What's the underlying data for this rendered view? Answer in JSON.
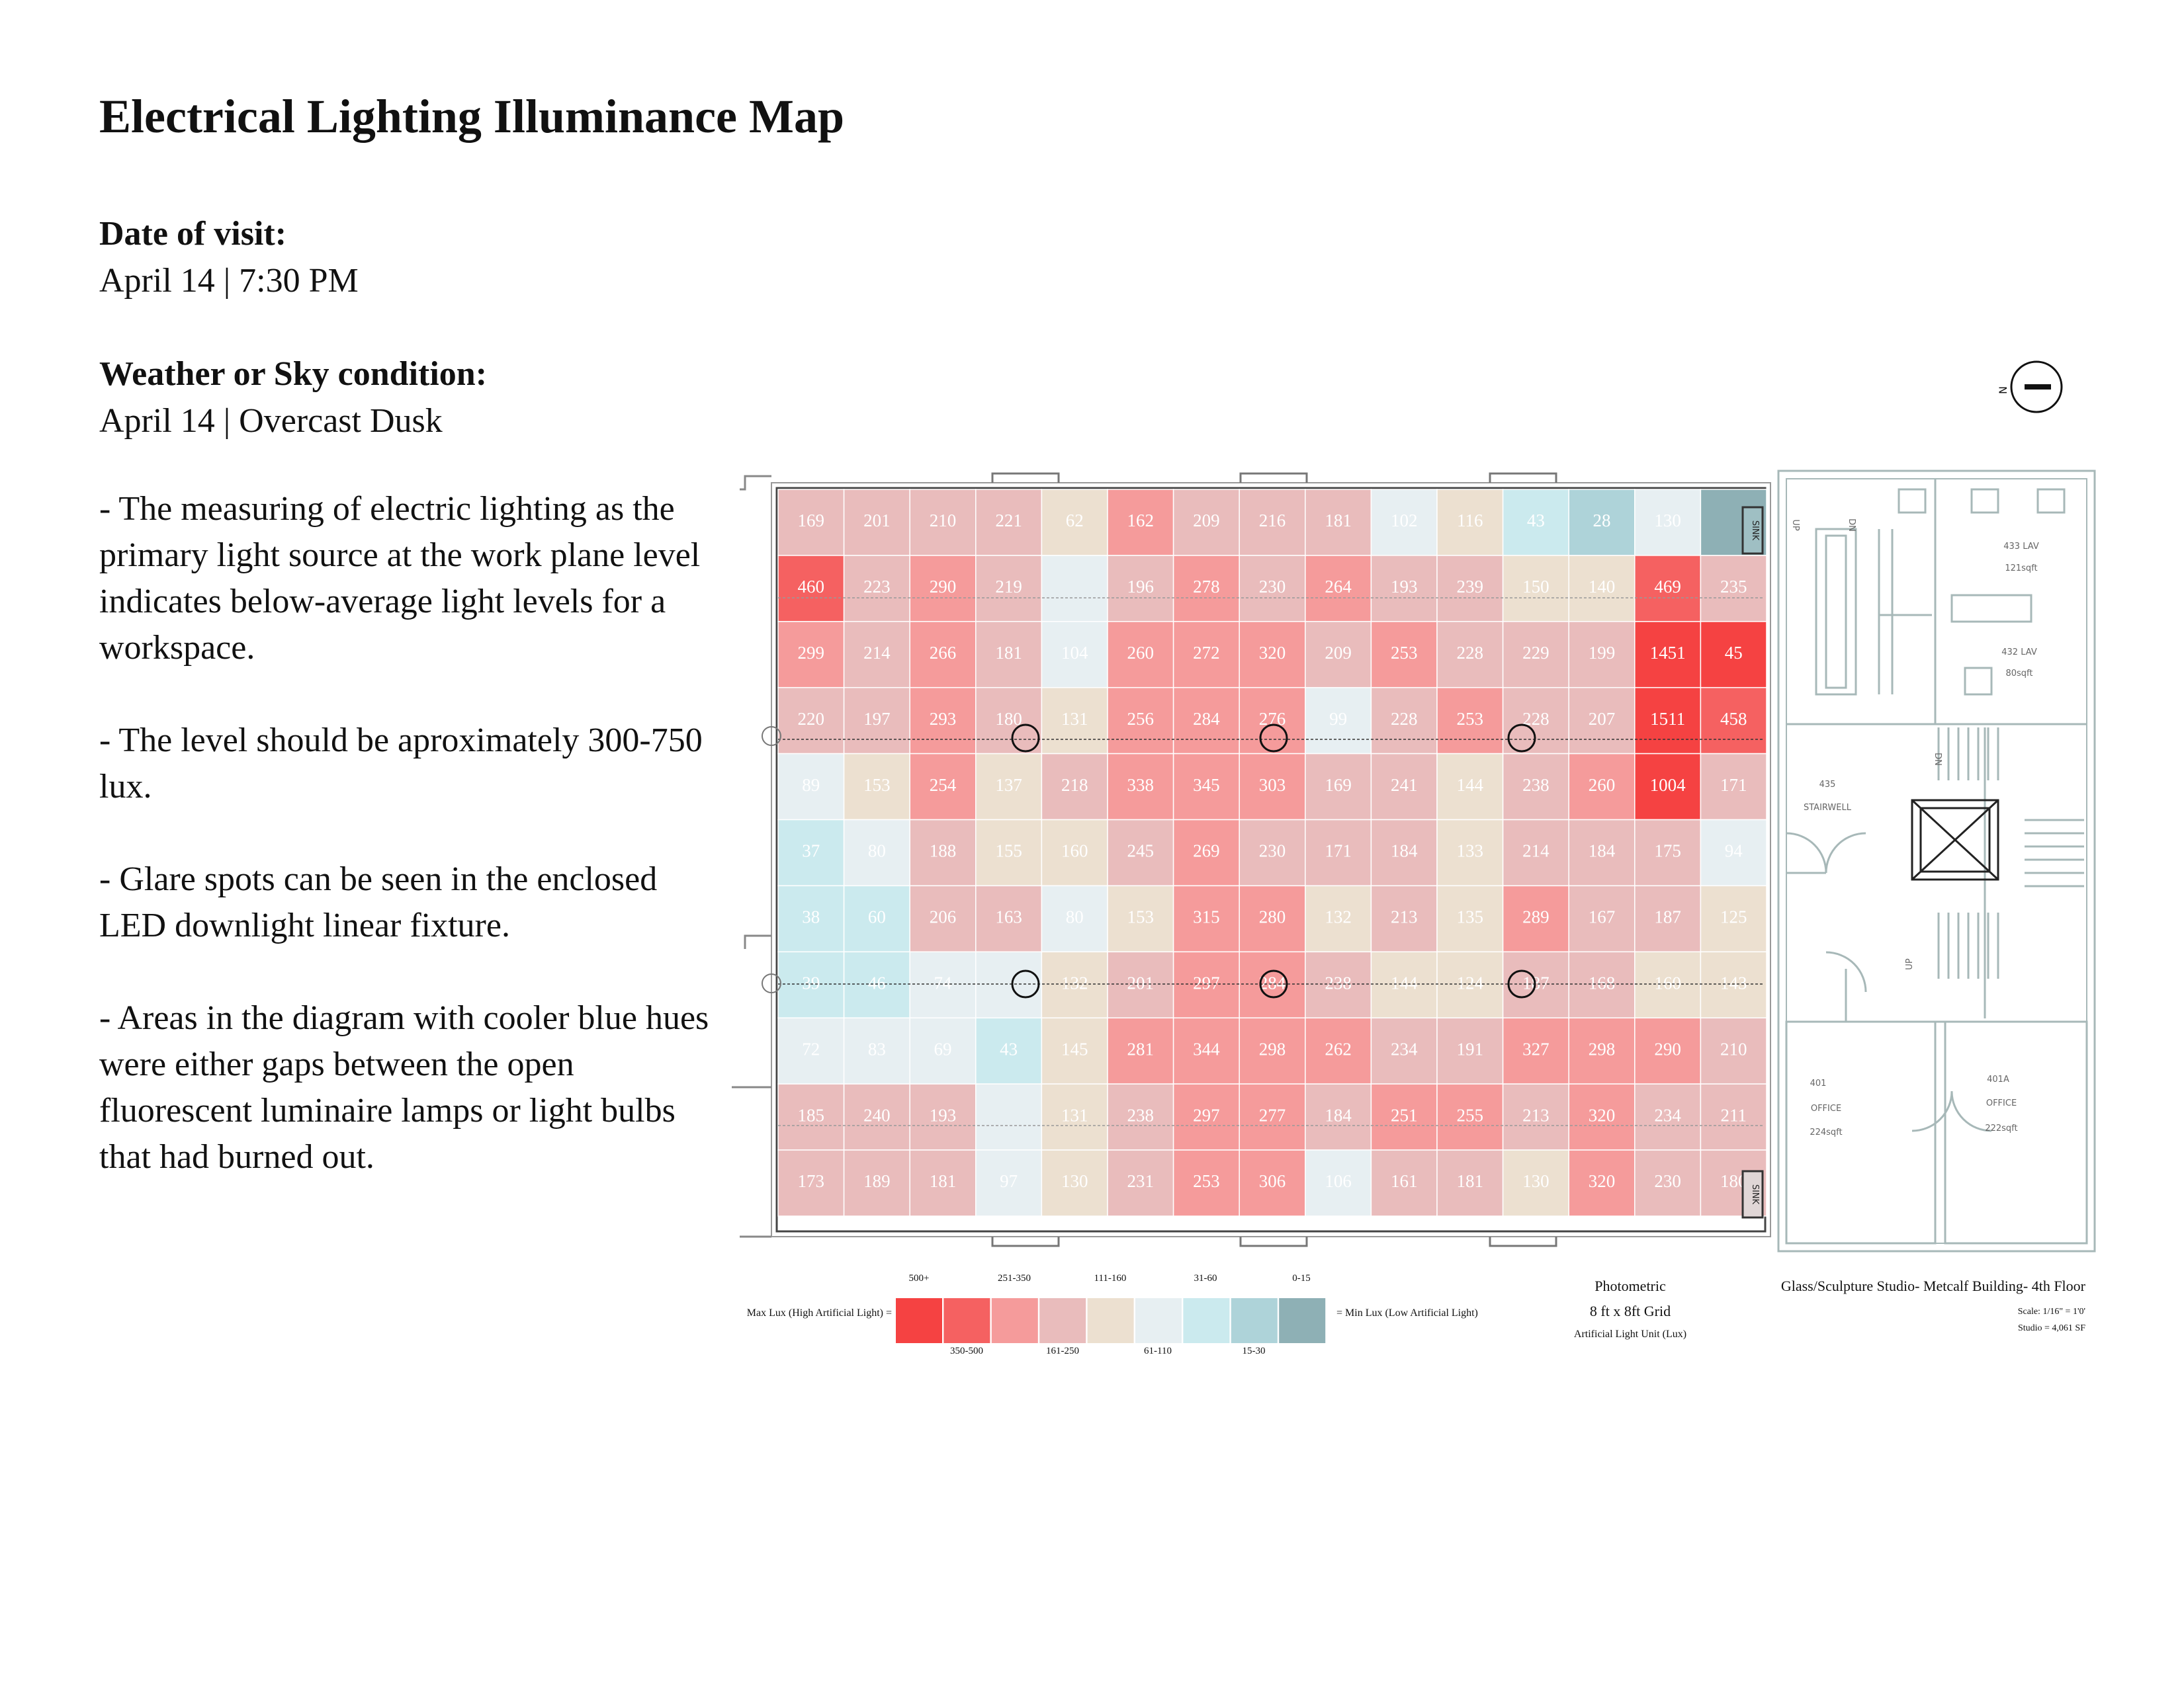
{
  "title": "Electrical Lighting Illuminance Map",
  "visit": {
    "label": "Date of visit:",
    "value": "April 14 | 7:30 PM"
  },
  "weather": {
    "label": "Weather or Sky condition:",
    "value": "April 14 | Overcast Dusk"
  },
  "notes": [
    "- The measuring of electric lighting as the primary light source at the work plane level indicates below-average light levels for a workspace.",
    "- The level should be aproximately 300-750 lux.",
    "- Glare spots can be seen in the enclosed LED downlight linear fixture.",
    "- Areas in the diagram with cooler blue hues were either gaps between the open fluorescent luminaire lamps or light bulbs that had burned out."
  ],
  "grid_values": [
    [
      "169",
      "201",
      "210",
      "221",
      "62",
      "162",
      "209",
      "216",
      "181",
      "102",
      "116",
      "43",
      "28",
      "130",
      ""
    ],
    [
      "460",
      "223",
      "290",
      "219",
      "",
      "196",
      "278",
      "230",
      "264",
      "193",
      "239",
      "150",
      "140",
      "469",
      "235"
    ],
    [
      "299",
      "214",
      "266",
      "181",
      "104",
      "260",
      "272",
      "320",
      "209",
      "253",
      "228",
      "229",
      "199",
      "1451",
      "45"
    ],
    [
      "220",
      "197",
      "293",
      "180",
      "131",
      "256",
      "284",
      "276",
      "99",
      "228",
      "253",
      "228",
      "207",
      "1511",
      "458"
    ],
    [
      "89",
      "153",
      "254",
      "137",
      "218",
      "338",
      "345",
      "303",
      "169",
      "241",
      "144",
      "238",
      "260",
      "1004",
      "171"
    ],
    [
      "37",
      "80",
      "188",
      "155",
      "160",
      "245",
      "269",
      "230",
      "171",
      "184",
      "133",
      "214",
      "184",
      "175",
      "94"
    ],
    [
      "38",
      "60",
      "206",
      "163",
      "80",
      "153",
      "315",
      "280",
      "132",
      "213",
      "135",
      "289",
      "167",
      "187",
      "125"
    ],
    [
      "39",
      "46",
      "74",
      "",
      "132",
      "201",
      "297",
      "284",
      "238",
      "144",
      "124",
      "187",
      "168",
      "160",
      "143"
    ],
    [
      "72",
      "83",
      "69",
      "43",
      "145",
      "281",
      "344",
      "298",
      "262",
      "234",
      "191",
      "327",
      "298",
      "290",
      "210"
    ],
    [
      "185",
      "240",
      "193",
      "",
      "131",
      "238",
      "297",
      "277",
      "184",
      "251",
      "255",
      "213",
      "320",
      "234",
      "211"
    ],
    [
      "173",
      "189",
      "181",
      "97",
      "130",
      "231",
      "253",
      "306",
      "106",
      "161",
      "181",
      "130",
      "320",
      "230",
      "180"
    ]
  ],
  "grid_colors": [
    [
      "#e9bcbc",
      "#e9bcbc",
      "#e9bcbc",
      "#e9bcbc",
      "#ece0d0",
      "#f59b9b",
      "#e9bcbc",
      "#e9bcbc",
      "#e9bcbc",
      "#e7eff2",
      "#ece0d0",
      "#cbeaee",
      "#aed3d9",
      "#e7eff2",
      "#8eb0b5"
    ],
    [
      "#f56161",
      "#e9bcbc",
      "#f59b9b",
      "#e9bcbc",
      "#e7eff2",
      "#e9bcbc",
      "#f59b9b",
      "#e9bcbc",
      "#f59b9b",
      "#e9bcbc",
      "#e9bcbc",
      "#ece0d0",
      "#ece0d0",
      "#f56161",
      "#e9bcbc"
    ],
    [
      "#f59b9b",
      "#e9bcbc",
      "#f59b9b",
      "#e9bcbc",
      "#e7eff2",
      "#f59b9b",
      "#f59b9b",
      "#f59b9b",
      "#e9bcbc",
      "#f59b9b",
      "#e9bcbc",
      "#e9bcbc",
      "#e9bcbc",
      "#f54242",
      "#f54242"
    ],
    [
      "#e9bcbc",
      "#e9bcbc",
      "#f59b9b",
      "#e9bcbc",
      "#ece0d0",
      "#f59b9b",
      "#f59b9b",
      "#f59b9b",
      "#e7eff2",
      "#e9bcbc",
      "#f59b9b",
      "#e9bcbc",
      "#e9bcbc",
      "#f54242",
      "#f56161"
    ],
    [
      "#e7eff2",
      "#ece0d0",
      "#f59b9b",
      "#ece0d0",
      "#e9bcbc",
      "#f59b9b",
      "#f59b9b",
      "#f59b9b",
      "#e9bcbc",
      "#e9bcbc",
      "#ece0d0",
      "#e9bcbc",
      "#f59b9b",
      "#f54242",
      "#e9bcbc"
    ],
    [
      "#cbeaee",
      "#e7eff2",
      "#e9bcbc",
      "#ece0d0",
      "#ece0d0",
      "#e9bcbc",
      "#f59b9b",
      "#e9bcbc",
      "#e9bcbc",
      "#e9bcbc",
      "#ece0d0",
      "#e9bcbc",
      "#e9bcbc",
      "#e9bcbc",
      "#e7eff2"
    ],
    [
      "#cbeaee",
      "#cbeaee",
      "#e9bcbc",
      "#e9bcbc",
      "#e7eff2",
      "#ece0d0",
      "#f59b9b",
      "#f59b9b",
      "#ece0d0",
      "#e9bcbc",
      "#ece0d0",
      "#f59b9b",
      "#e9bcbc",
      "#e9bcbc",
      "#ece0d0"
    ],
    [
      "#cbeaee",
      "#cbeaee",
      "#e7eff2",
      "#e7eff2",
      "#ece0d0",
      "#e9bcbc",
      "#f59b9b",
      "#f59b9b",
      "#e9bcbc",
      "#ece0d0",
      "#ece0d0",
      "#e9bcbc",
      "#e9bcbc",
      "#ece0d0",
      "#ece0d0"
    ],
    [
      "#e7eff2",
      "#e7eff2",
      "#e7eff2",
      "#cbeaee",
      "#ece0d0",
      "#f59b9b",
      "#f59b9b",
      "#f59b9b",
      "#f59b9b",
      "#e9bcbc",
      "#e9bcbc",
      "#f59b9b",
      "#f59b9b",
      "#f59b9b",
      "#e9bcbc"
    ],
    [
      "#e9bcbc",
      "#e9bcbc",
      "#e9bcbc",
      "#e7eff2",
      "#ece0d0",
      "#e9bcbc",
      "#f59b9b",
      "#f59b9b",
      "#e9bcbc",
      "#f59b9b",
      "#f59b9b",
      "#e9bcbc",
      "#f59b9b",
      "#e9bcbc",
      "#e9bcbc"
    ],
    [
      "#e9bcbc",
      "#e9bcbc",
      "#e9bcbc",
      "#e7eff2",
      "#ece0d0",
      "#e9bcbc",
      "#f59b9b",
      "#f59b9b",
      "#e7eff2",
      "#e9bcbc",
      "#e9bcbc",
      "#ece0d0",
      "#f59b9b",
      "#e9bcbc",
      "#e9bcbc"
    ]
  ],
  "rooms": {
    "sink_label": "SINK",
    "lav_433": "433 LAV",
    "lav_433_area": "121sqft",
    "lav_432": "432 LAV",
    "lav_432_area": "80sqft",
    "stair_num": "435",
    "stair_name": "STAIRWELL",
    "office_401": "401",
    "office_401_name": "OFFICE",
    "office_401_area": "224sqft",
    "office_401a": "401A",
    "office_401a_name": "OFFICE",
    "office_401a_area": "222sqft",
    "up": "UP",
    "dn": "DN"
  },
  "north_label": "N",
  "legend": {
    "left_label": "Max Lux (High Artificial Light) =",
    "right_label": "= Min Lux (Low Artificial Light)",
    "swatches": [
      "#f54242",
      "#f56161",
      "#f59b9b",
      "#e9bcbc",
      "#ece0d0",
      "#e7eff2",
      "#cbeaee",
      "#aed3d9",
      "#8eb0b5"
    ],
    "top_labels": [
      "500+",
      "251-350",
      "111-160",
      "31-60",
      "0-15"
    ],
    "bottom_labels": [
      "350-500",
      "161-250",
      "61-110",
      "15-30"
    ]
  },
  "info": {
    "line1": "Photometric",
    "line2": "8 ft x 8ft Grid",
    "line3": "Artificial Light Unit (Lux)",
    "studio": "Glass/Sculpture Studio- Metcalf Building- 4th Floor",
    "scale": "Scale: 1/16\" = 1'0'",
    "area": "Studio = 4,061 SF"
  }
}
